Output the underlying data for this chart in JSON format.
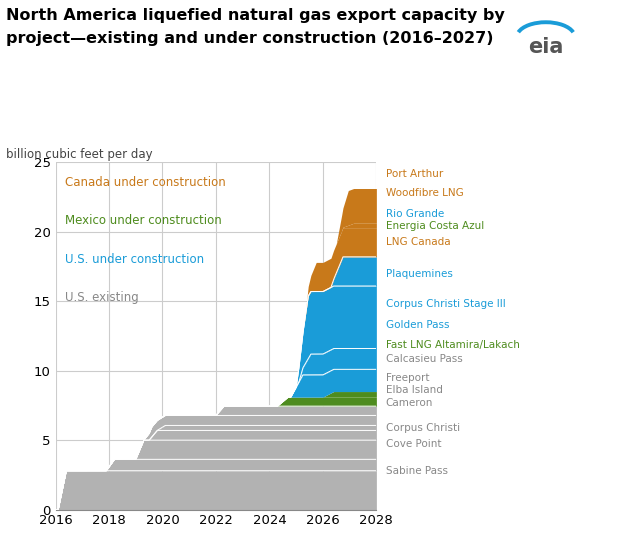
{
  "title_line1": "North America liquefied natural gas export capacity by",
  "title_line2": "project—existing and under construction (2016–2027)",
  "subtitle": "billion cubic feet per day",
  "xlim": [
    2016,
    2028
  ],
  "ylim": [
    0,
    25
  ],
  "xticks": [
    2016,
    2018,
    2020,
    2022,
    2024,
    2026,
    2028
  ],
  "yticks": [
    0,
    5,
    10,
    15,
    20,
    25
  ],
  "colors": {
    "us_existing": "#b2b2b2",
    "us_construction": "#1a9cd8",
    "mexico_construction": "#4e8c1e",
    "canada_construction": "#c8791a"
  },
  "legend": [
    {
      "label": "Canada under construction",
      "color": "#c8791a"
    },
    {
      "label": "Mexico under construction",
      "color": "#4e8c1e"
    },
    {
      "label": "U.S. under construction",
      "color": "#1a9cd8"
    },
    {
      "label": "U.S. existing",
      "color": "#888888"
    }
  ],
  "us_existing_projects": [
    {
      "name": "Sabine Pass",
      "start": 2016.1,
      "end": 2028,
      "capacity": 2.8
    },
    {
      "name": "Cove Point",
      "start": 2017.9,
      "end": 2028,
      "capacity": 0.82
    },
    {
      "name": "Corpus Christi",
      "start": 2019.0,
      "end": 2028,
      "capacity": 1.38
    },
    {
      "name": "Cameron",
      "start": 2019.5,
      "end": 2028,
      "capacity": 0.7
    },
    {
      "name": "Elba Island",
      "start": 2019.8,
      "end": 2028,
      "capacity": 0.36
    },
    {
      "name": "Freeport",
      "start": 2019.3,
      "end": 2028,
      "capacity": 0.72
    },
    {
      "name": "Calcasieu Pass",
      "start": 2022.0,
      "end": 2028,
      "capacity": 0.67
    }
  ],
  "mexico_construction_projects": [
    {
      "name": "Fast LNG Altamira/Lakach",
      "start": 2024.3,
      "end": 2028,
      "capacity": 0.65
    },
    {
      "name": "Energia Costa Azul",
      "start": 2026.0,
      "end": 2028,
      "capacity": 0.4
    }
  ],
  "us_construction_projects": [
    {
      "name": "Golden Pass",
      "start": 2024.8,
      "end": 2028,
      "capacity": 1.6
    },
    {
      "name": "Corpus Christi Stage III",
      "start": 2025.1,
      "end": 2028,
      "capacity": 1.5
    },
    {
      "name": "Plaquemines",
      "start": 2025.0,
      "end": 2028,
      "capacity": 4.5
    },
    {
      "name": "Rio Grande",
      "start": 2026.3,
      "end": 2028,
      "capacity": 2.1
    }
  ],
  "canada_construction_projects": [
    {
      "name": "LNG Canada",
      "start": 2025.3,
      "end": 2028,
      "capacity": 2.1
    },
    {
      "name": "Woodfibre LNG",
      "start": 2026.7,
      "end": 2028,
      "capacity": 0.32
    },
    {
      "name": "Port Arthur",
      "start": 2026.5,
      "end": 2028,
      "capacity": 2.5
    }
  ],
  "right_annotations": [
    {
      "label": "Port Arthur",
      "y": 24.2,
      "color": "#c8791a"
    },
    {
      "label": "Woodfibre LNG",
      "y": 22.8,
      "color": "#c8791a"
    },
    {
      "label": "Rio Grande",
      "y": 21.3,
      "color": "#1a9cd8"
    },
    {
      "label": "Energia Costa Azul",
      "y": 20.4,
      "color": "#4e8c1e"
    },
    {
      "label": "LNG Canada",
      "y": 19.3,
      "color": "#c8791a"
    },
    {
      "label": "Plaquemines",
      "y": 17.0,
      "color": "#1a9cd8"
    },
    {
      "label": "Corpus Christi Stage III",
      "y": 14.8,
      "color": "#1a9cd8"
    },
    {
      "label": "Golden Pass",
      "y": 13.3,
      "color": "#1a9cd8"
    },
    {
      "label": "Fast LNG Altamira/Lakach",
      "y": 11.85,
      "color": "#4e8c1e"
    },
    {
      "label": "Calcasieu Pass",
      "y": 10.85,
      "color": "#888888"
    },
    {
      "label": "Freeport",
      "y": 9.5,
      "color": "#888888"
    },
    {
      "label": "Elba Island",
      "y": 8.6,
      "color": "#888888"
    },
    {
      "label": "Cameron",
      "y": 7.7,
      "color": "#888888"
    },
    {
      "label": "Corpus Christi",
      "y": 5.9,
      "color": "#888888"
    },
    {
      "label": "Cove Point",
      "y": 4.7,
      "color": "#888888"
    },
    {
      "label": "Sabine Pass",
      "y": 2.8,
      "color": "#888888"
    }
  ]
}
